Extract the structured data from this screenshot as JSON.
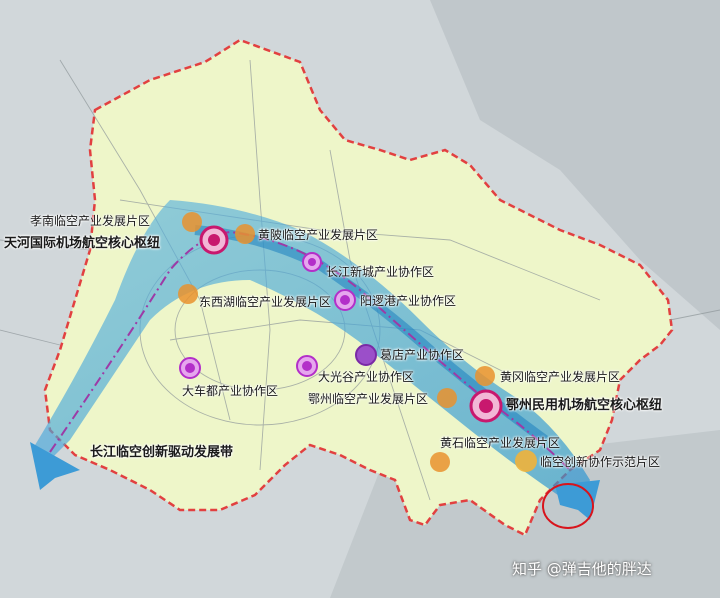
{
  "labels": {
    "xiaonan": "孝南临空产业发展片区",
    "tianhe": "天河国际机场航空核心枢纽",
    "huangpi": "黄陂临空产业发展片区",
    "changjiang_new_city": "长江新城产业协作区",
    "dongxihu": "东西湖临空产业发展片区",
    "yangluo": "阳逻港产业协作区",
    "gedian": "葛店产业协作区",
    "caidian": "大车都产业协作区",
    "guanggu": "大光谷产业协作区",
    "huanggang": "黄冈临空产业发展片区",
    "ezhou_zone": "鄂州临空产业发展片区",
    "ezhou_airport": "鄂州民用机场航空核心枢纽",
    "huangshi": "黄石临空产业发展片区",
    "innovation": "临空创新协作示范片区",
    "belt": "长江临空创新驱动发展带"
  },
  "watermark": "知乎 @弹吉他的胖达",
  "legend_colors": {
    "core_hub": "#c8186e",
    "industry_zone": "#e9922e",
    "cooperation_zone": "#b32fc9",
    "innovation_zone": "#f0b33a",
    "development_belt": "#2a93d0",
    "boundary": "#e24040"
  }
}
